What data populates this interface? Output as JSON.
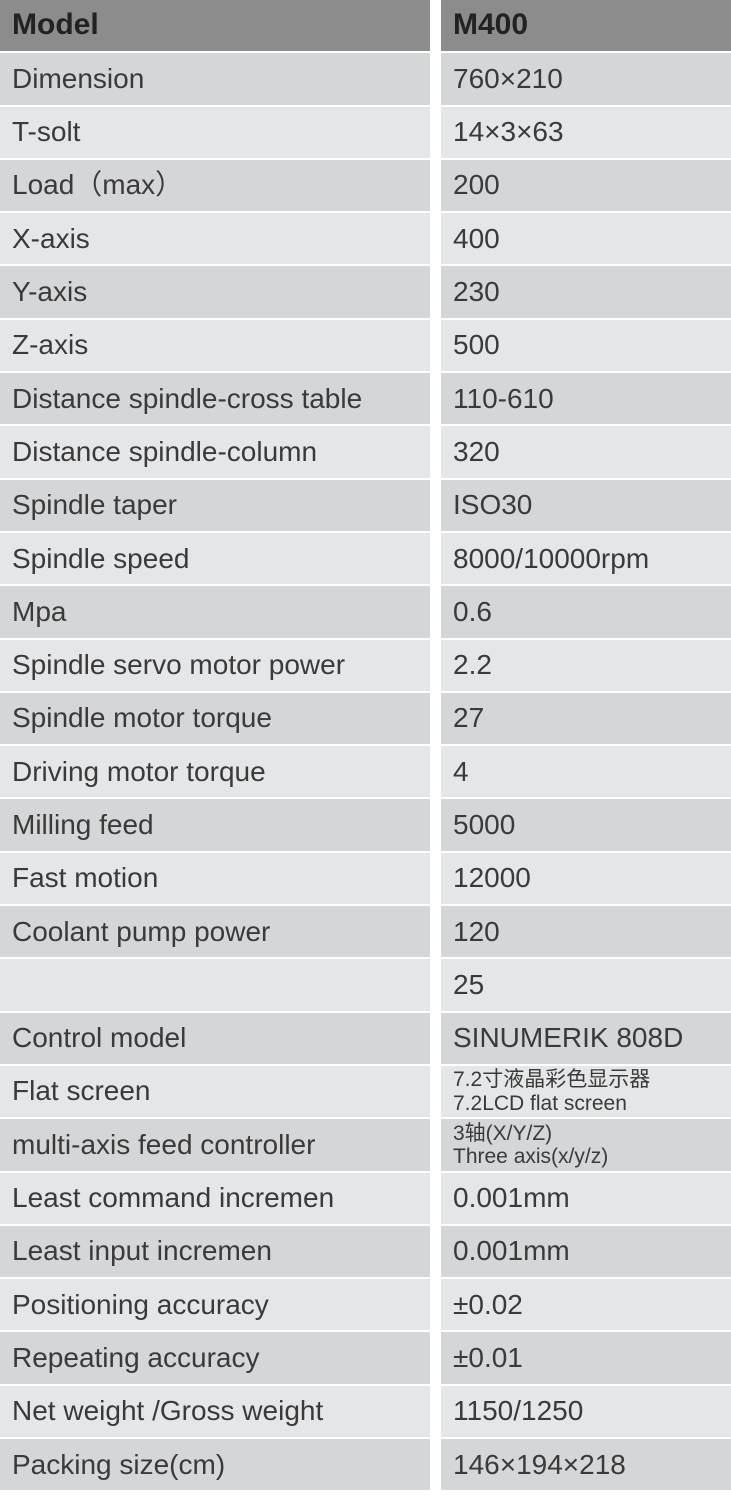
{
  "table": {
    "type": "spec_table",
    "header_bg": "#8c8c8c",
    "header_fg": "#222222",
    "stripe_a": "#d5d6d8",
    "stripe_b": "#e5e6e8",
    "text_color": "#3a3a3a",
    "font_size_main": 28,
    "font_size_small": 21,
    "row_height": 53.3,
    "col_label_width": 430,
    "col_value_width": 290,
    "gap_width": 11,
    "rows": [
      {
        "label": "Model",
        "value": "M400",
        "header": true
      },
      {
        "label": "Dimension",
        "value": "760×210"
      },
      {
        "label": "T-solt",
        "value": "14×3×63"
      },
      {
        "label": "Load（max）",
        "value": "200"
      },
      {
        "label": "X-axis",
        "value": "400"
      },
      {
        "label": "Y-axis",
        "value": "230"
      },
      {
        "label": "Z-axis",
        "value": "500"
      },
      {
        "label": "Distance spindle-cross table",
        "value": "110-610"
      },
      {
        "label": "Distance spindle-column",
        "value": "320"
      },
      {
        "label": "Spindle taper",
        "value": "ISO30"
      },
      {
        "label": "Spindle speed",
        "value": "8000/10000rpm"
      },
      {
        "label": "Mpa",
        "value": "0.6"
      },
      {
        "label": "Spindle  servo motor power",
        "value": "2.2"
      },
      {
        "label": "Spindle motor torque",
        "value": "27"
      },
      {
        "label": "Driving motor torque",
        "value": "4"
      },
      {
        "label": "Milling feed",
        "value": "5000"
      },
      {
        "label": "Fast motion",
        "value": "12000"
      },
      {
        "label": "Coolant pump power",
        "value": "120"
      },
      {
        "label": "",
        "value": "25"
      },
      {
        "label": "Control model",
        "value": "SINUMERIK  808D"
      },
      {
        "label": "Flat screen",
        "value": "7.2寸液晶彩色显示器",
        "value2": "7.2LCD flat screen",
        "small": true
      },
      {
        "label": "multi-axis feed controller",
        "value": "3轴(X/Y/Z)",
        "value2": "Three  axis(x/y/z)",
        "small": true
      },
      {
        "label": "Least command incremen",
        "value": "0.001mm"
      },
      {
        "label": "Least input incremen",
        "value": "0.001mm"
      },
      {
        "label": "Positioning accuracy",
        "value": "±0.02"
      },
      {
        "label": "Repeating accuracy",
        "value": "±0.01"
      },
      {
        "label": "Net weight /Gross weight",
        "value": "1150/1250"
      },
      {
        "label": "Packing size(cm)",
        "value": "146×194×218"
      }
    ]
  }
}
